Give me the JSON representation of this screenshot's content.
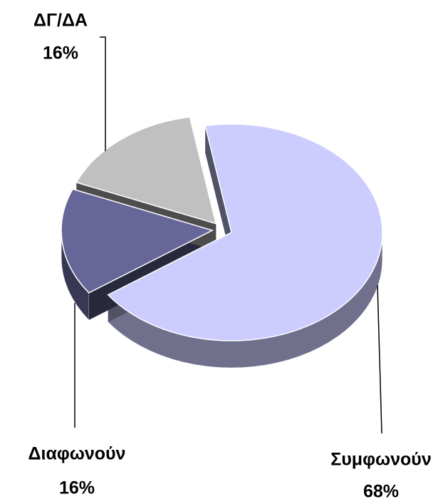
{
  "chart_data": {
    "type": "pie",
    "categories": [
      "Συμφωνούν",
      "Διαφωνούν",
      "ΔΓ/ΔΑ"
    ],
    "values": [
      68,
      16,
      16
    ],
    "value_labels": [
      "68%",
      "16%",
      "16%"
    ],
    "colors": [
      "#ccccff",
      "#666699",
      "#c0c0c0"
    ]
  }
}
